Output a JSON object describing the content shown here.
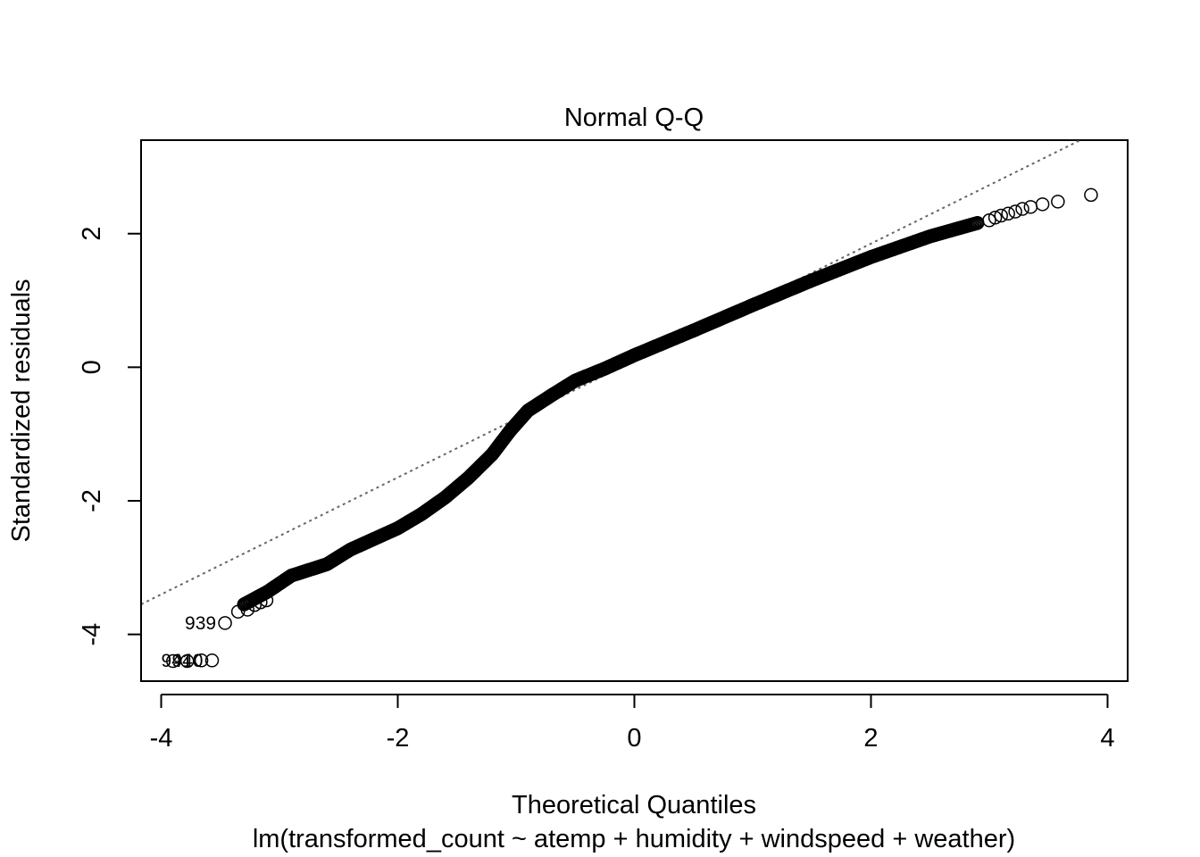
{
  "chart_data": {
    "type": "scatter",
    "title": "Normal Q-Q",
    "xlabel": "Theoretical Quantiles",
    "ylabel": "Standardized residuals",
    "subtitle": "lm(transformed_count ~ atemp + humidity + windspeed + weather)",
    "xlim": [
      -4.17,
      4.17
    ],
    "ylim": [
      -4.7,
      3.4
    ],
    "xticks": [
      -4,
      -2,
      0,
      2,
      4
    ],
    "yticks": [
      -4,
      -2,
      0,
      2
    ],
    "reference_line": {
      "type": "dotted",
      "color": "#666666",
      "points": [
        [
          -4.17,
          -3.55
        ],
        [
          3.77,
          3.4
        ]
      ]
    },
    "curve_knots": [
      [
        -3.3,
        -3.55
      ],
      [
        -3.1,
        -3.36
      ],
      [
        -2.9,
        -3.12
      ],
      [
        -2.6,
        -2.95
      ],
      [
        -2.4,
        -2.73
      ],
      [
        -2.2,
        -2.57
      ],
      [
        -2.0,
        -2.41
      ],
      [
        -1.8,
        -2.2
      ],
      [
        -1.6,
        -1.95
      ],
      [
        -1.4,
        -1.65
      ],
      [
        -1.2,
        -1.3
      ],
      [
        -1.05,
        -0.95
      ],
      [
        -0.9,
        -0.65
      ],
      [
        -0.7,
        -0.42
      ],
      [
        -0.5,
        -0.2
      ],
      [
        -0.25,
        -0.02
      ],
      [
        0.0,
        0.18
      ],
      [
        0.5,
        0.55
      ],
      [
        1.0,
        0.93
      ],
      [
        1.5,
        1.3
      ],
      [
        2.0,
        1.65
      ],
      [
        2.5,
        1.96
      ],
      [
        2.9,
        2.16
      ]
    ],
    "tail_points": [
      [
        -3.9,
        -4.4
      ],
      [
        -3.78,
        -4.4
      ],
      [
        -3.66,
        -4.39
      ],
      [
        -3.57,
        -4.39
      ],
      [
        -3.46,
        -3.83
      ],
      [
        -3.35,
        -3.66
      ],
      [
        -3.27,
        -3.63
      ],
      [
        -3.21,
        -3.56
      ],
      [
        -3.16,
        -3.52
      ],
      [
        -3.11,
        -3.49
      ],
      [
        3.0,
        2.2
      ],
      [
        3.05,
        2.24
      ],
      [
        3.1,
        2.27
      ],
      [
        3.16,
        2.3
      ],
      [
        3.22,
        2.33
      ],
      [
        3.28,
        2.37
      ],
      [
        3.35,
        2.4
      ],
      [
        3.45,
        2.44
      ],
      [
        3.58,
        2.48
      ],
      [
        3.86,
        2.58
      ]
    ],
    "labeled_points": [
      {
        "label": "939",
        "x": -3.46,
        "y": -3.83
      },
      {
        "label": "941",
        "x": -3.66,
        "y": -4.39
      },
      {
        "label": "940",
        "x": -3.57,
        "y": -4.39
      }
    ],
    "marker": "open-circle"
  }
}
